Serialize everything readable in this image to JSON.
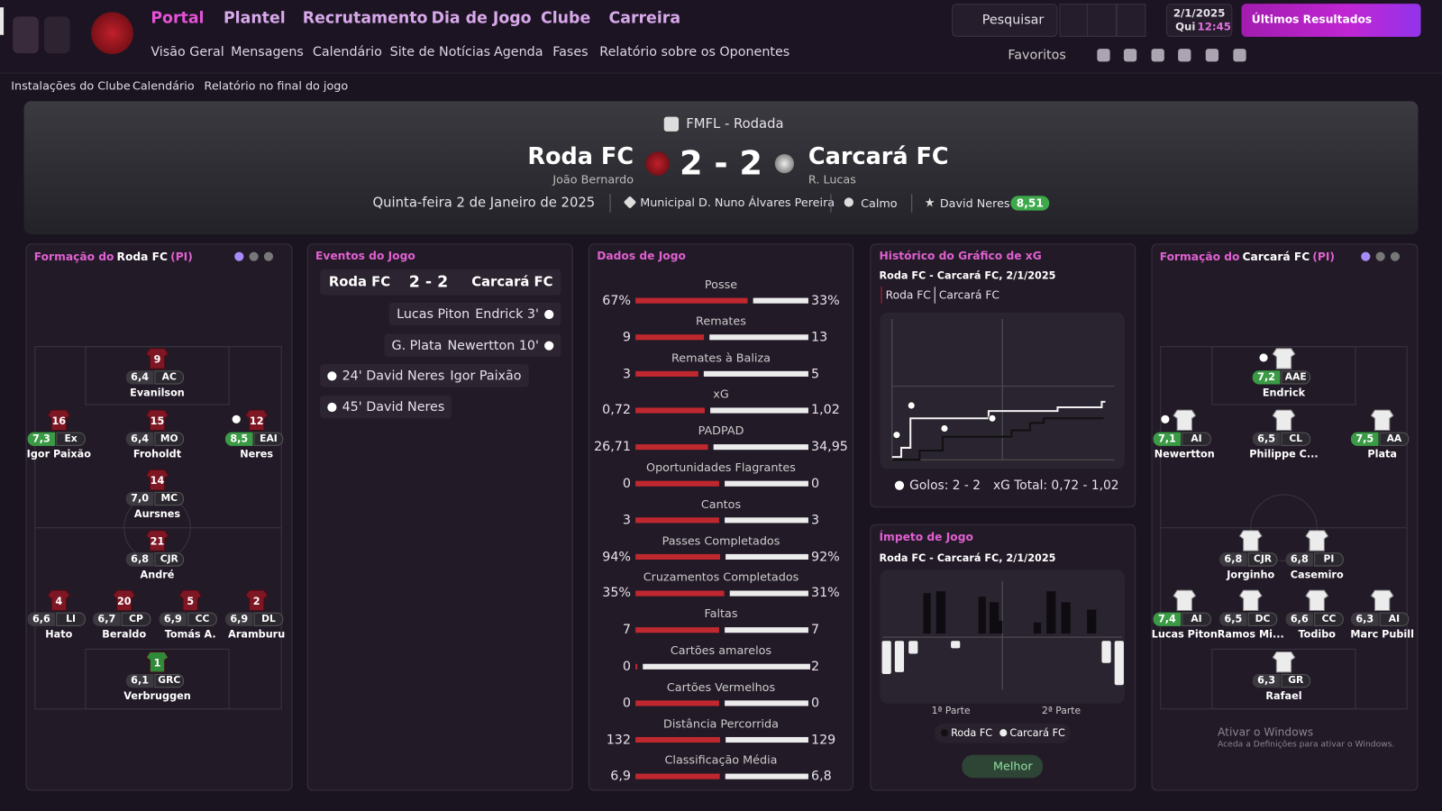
{
  "nav": {
    "menu": [
      "Portal",
      "Plantel",
      "Recrutamento",
      "Dia de Jogo",
      "Clube",
      "Carreira"
    ],
    "submenu": [
      "Visão Geral",
      "Mensagens",
      "Calendário",
      "Site de Notícias",
      "Agenda",
      "Fases",
      "Relatório sobre os Oponentes"
    ],
    "search": "Pesquisar",
    "date": "2/1/2025",
    "weekday": "Qui",
    "time": "12:45",
    "results": "Últimos Resultados",
    "favorites": "Favoritos"
  },
  "breadcrumb": [
    "Instalações do Clube",
    "Calendário",
    "Relatório no final do jogo"
  ],
  "match": {
    "competition": "FMFL - Rodada",
    "home": "Roda FC",
    "home_scorer": "João Bernardo",
    "score": "2 - 2",
    "away": "Carcará FC",
    "away_scorer": "R. Lucas",
    "date": "Quinta-feira 2 de Janeiro de 2025",
    "stadium": "Municipal D. Nuno Álvares Pereira",
    "weather": "Calmo",
    "motm": "David Neres",
    "motm_rating": "8,51"
  },
  "home_lineup": {
    "title": "Formação do",
    "team": "Roda FC",
    "suffix": "(PI)",
    "players": [
      {
        "number": "9",
        "rating": "6,4",
        "position": "AC",
        "name": "Evanilson"
      },
      {
        "number": "16",
        "rating": "7,3",
        "position": "Ex",
        "name": "Igor Paixão"
      },
      {
        "number": "15",
        "rating": "6,4",
        "position": "MO",
        "name": "Froholdt"
      },
      {
        "number": "12",
        "rating": "8,5",
        "position": "EAI",
        "name": "Neres"
      },
      {
        "number": "14",
        "rating": "7,0",
        "position": "MC",
        "name": "Aursnes"
      },
      {
        "number": "21",
        "rating": "6,8",
        "position": "CJR",
        "name": "André"
      },
      {
        "number": "4",
        "rating": "6,6",
        "position": "LI",
        "name": "Hato"
      },
      {
        "number": "20",
        "rating": "6,7",
        "position": "CP",
        "name": "Beraldo"
      },
      {
        "number": "5",
        "rating": "6,9",
        "position": "CC",
        "name": "Tomás A."
      },
      {
        "number": "2",
        "rating": "6,9",
        "position": "DL",
        "name": "Aramburu"
      },
      {
        "number": "1",
        "rating": "6,1",
        "position": "GRC",
        "name": "Verbruggen"
      }
    ]
  },
  "away_lineup": {
    "title": "Formação do",
    "team": "Carcará FC",
    "suffix": "(PI)",
    "players": [
      {
        "rating": "7,2",
        "position": "AAE",
        "name": "Endrick"
      },
      {
        "rating": "7,1",
        "position": "AI",
        "name": "Newertton"
      },
      {
        "rating": "6,5",
        "position": "CL",
        "name": "Philippe C..."
      },
      {
        "rating": "7,5",
        "position": "AA",
        "name": "Plata"
      },
      {
        "rating": "6,8",
        "position": "CJR",
        "name": "Jorginho"
      },
      {
        "rating": "6,8",
        "position": "PI",
        "name": "Casemiro"
      },
      {
        "rating": "7,4",
        "position": "AI",
        "name": "Lucas Piton"
      },
      {
        "rating": "6,5",
        "position": "DC",
        "name": "Ramos Mi..."
      },
      {
        "rating": "6,6",
        "position": "CC",
        "name": "Todibo"
      },
      {
        "rating": "6,3",
        "position": "AI",
        "name": "Marc Pubill"
      },
      {
        "rating": "6,3",
        "position": "GR",
        "name": "Rafael"
      }
    ]
  },
  "events": {
    "title": "Eventos do Jogo",
    "home": "Roda FC",
    "score": "2 - 2",
    "away": "Carcará FC",
    "away_goals": [
      [
        "Lucas Piton",
        "Endrick 3'"
      ],
      [
        "G. Plata",
        "Newertton 10'"
      ]
    ],
    "home_goals": [
      [
        "24' David Neres",
        "Igor Paixão"
      ],
      [
        "45' David Neres"
      ]
    ]
  },
  "stats": {
    "title": "Dados de Jogo",
    "rows": [
      {
        "label": "Posse",
        "home": "67%",
        "away": "33%"
      },
      {
        "label": "Remates",
        "home": "9",
        "away": "13"
      },
      {
        "label": "Remates à Baliza",
        "home": "3",
        "away": "5"
      },
      {
        "label": "xG",
        "home": "0,72",
        "away": "1,02"
      },
      {
        "label": "PADPAD",
        "home": "26,71",
        "away": "34,95"
      },
      {
        "label": "Oportunidades Flagrantes",
        "home": "0",
        "away": "0"
      },
      {
        "label": "Cantos",
        "home": "3",
        "away": "3"
      },
      {
        "label": "Passes Completados",
        "home": "94%",
        "away": "92%"
      },
      {
        "label": "Cruzamentos Completados",
        "home": "35%",
        "away": "31%"
      },
      {
        "label": "Faltas",
        "home": "7",
        "away": "7"
      },
      {
        "label": "Cartões amarelos",
        "home": "0",
        "away": "2"
      },
      {
        "label": "Cartões Vermelhos",
        "home": "0",
        "away": "0"
      },
      {
        "label": "Distância Percorrida",
        "home": "132",
        "away": "129"
      },
      {
        "label": "Classificação Média",
        "home": "6,9",
        "away": "6,8"
      }
    ]
  },
  "xg": {
    "title": "Histórico do Gráfico de xG",
    "subtitle": "Roda FC - Carcará FC, 2/1/2025",
    "legend": [
      "Roda FC",
      "Carcará FC"
    ],
    "goals": "Golos: 2 - 2",
    "total": "xG Total: 0,72 - 1,02"
  },
  "momentum": {
    "title": "Ímpeto de Jogo",
    "subtitle": "Roda FC - Carcará FC, 2/1/2025",
    "halves": [
      "1ª Parte",
      "2ª Parte"
    ],
    "legend": [
      "Roda FC",
      "Carcará FC"
    ],
    "button": "Melhor"
  },
  "watermark": [
    "Ativar o Windows",
    "Aceda a Definições para ativar o Windows."
  ]
}
